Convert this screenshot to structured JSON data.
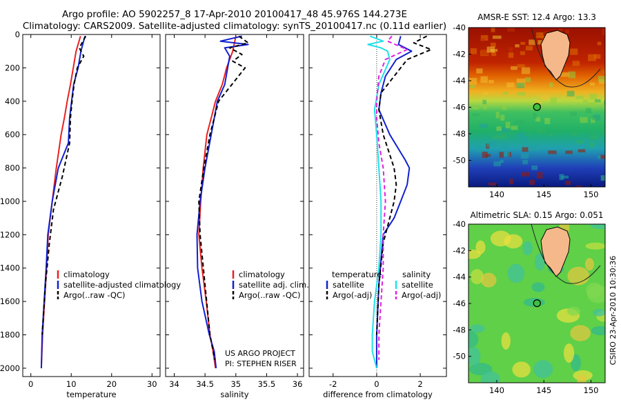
{
  "header": {
    "line1": "Argo profile: AO 5902257_8 17-Apr-2010 20100417_48 45.976S 144.273E",
    "line2": "Climatology: CARS2009. Satellite-adjusted climatology: synTS_20100417.nc (0.11d earlier)"
  },
  "side_label": "CSIRO 23-Apr-2010 10:30:36",
  "colors": {
    "red": "#e82020",
    "blue": "#1020d0",
    "black": "#000000",
    "cyan": "#20e0e8",
    "magenta": "#e020e0",
    "land": "#f5b88a"
  },
  "chart_data": [
    {
      "type": "line",
      "xlabel": "temperature",
      "xticks": [
        0,
        10,
        20,
        30
      ],
      "xlim": [
        -2,
        32
      ],
      "ylim": [
        2050,
        0
      ],
      "yticks": [
        0,
        200,
        400,
        600,
        800,
        1000,
        1200,
        1400,
        1600,
        1800,
        2000
      ],
      "legend": [
        "climatology",
        "satellite-adjusted climatology",
        "Argo(..raw -QC)"
      ],
      "series": [
        {
          "name": "climatology",
          "color": "red",
          "dash": false,
          "x": [
            12.3,
            11.2,
            10.5,
            9.8,
            9.0,
            8.3,
            7.5,
            6.3,
            5.3,
            4.3,
            3.9,
            3.4,
            2.9,
            2.6
          ],
          "y": [
            10,
            100,
            200,
            300,
            400,
            500,
            600,
            800,
            1000,
            1200,
            1400,
            1600,
            1800,
            2000
          ]
        },
        {
          "name": "satellite-adjusted climatology",
          "color": "blue",
          "dash": false,
          "x": [
            13.4,
            12.4,
            11.7,
            10.6,
            10.1,
            9.6,
            9.3,
            6.8,
            5.3,
            4.2,
            3.8,
            3.3,
            2.8,
            2.6
          ],
          "y": [
            10,
            100,
            200,
            300,
            400,
            500,
            650,
            800,
            1000,
            1200,
            1400,
            1600,
            1800,
            2000
          ]
        },
        {
          "name": "Argo(..raw -QC)",
          "color": "black",
          "dash": true,
          "x": [
            13.6,
            12.0,
            13.1,
            11.5,
            10.7,
            10.2,
            9.8,
            9.6,
            7.8,
            5.6,
            4.6,
            3.6,
            2.8
          ],
          "y": [
            10,
            80,
            130,
            200,
            300,
            400,
            500,
            650,
            850,
            1050,
            1250,
            1500,
            1800
          ]
        }
      ]
    },
    {
      "type": "line",
      "xlabel": "salinity",
      "xticks": [
        34,
        34.5,
        35,
        35.5,
        36
      ],
      "xlim": [
        33.86,
        36.1
      ],
      "ylim": [
        2050,
        0
      ],
      "legend": [
        "climatology",
        "satellite adj. clim.",
        "Argo(..raw -QC)"
      ],
      "annotation": [
        "US ARGO PROJECT",
        "PI: STEPHEN RISER"
      ],
      "series": [
        {
          "name": "climatology",
          "color": "red",
          "dash": false,
          "x": [
            35.0,
            34.95,
            34.85,
            34.78,
            34.67,
            34.6,
            34.53,
            34.47,
            34.43,
            34.4,
            34.45,
            34.52,
            34.58,
            34.63,
            34.67
          ],
          "y": [
            10,
            100,
            200,
            300,
            400,
            500,
            600,
            800,
            1000,
            1200,
            1400,
            1600,
            1800,
            1900,
            2000
          ]
        },
        {
          "name": "satellite adj. clim.",
          "color": "blue",
          "dash": false,
          "x": [
            35.1,
            34.75,
            35.2,
            34.82,
            34.9,
            34.82,
            34.7,
            34.6,
            34.5,
            34.42,
            34.37,
            34.38,
            34.45,
            34.57,
            34.65,
            34.68
          ],
          "y": [
            10,
            40,
            60,
            80,
            130,
            300,
            400,
            600,
            800,
            1000,
            1200,
            1400,
            1600,
            1800,
            1900,
            2000
          ]
        },
        {
          "name": "Argo(..raw -QC)",
          "color": "black",
          "dash": true,
          "x": [
            35.05,
            35.2,
            34.9,
            35.1,
            34.95,
            35.15,
            34.72,
            34.58,
            34.48,
            34.4,
            34.42,
            34.5,
            34.58,
            34.66
          ],
          "y": [
            10,
            50,
            80,
            120,
            160,
            200,
            400,
            600,
            800,
            1000,
            1200,
            1500,
            1800,
            1950
          ]
        }
      ]
    },
    {
      "type": "line",
      "xlabel": "difference from climatology",
      "xticks": [
        -2,
        0,
        2
      ],
      "xlim": [
        -3.1,
        3.2
      ],
      "ylim": [
        2050,
        0
      ],
      "legend_title_left": "temperature",
      "legend_title_right": "salinity",
      "legend_left": [
        "satellite",
        "Argo(-adj)"
      ],
      "legend_right": [
        "satellite",
        "Argo(-adj)"
      ],
      "series": [
        {
          "name": "temperature satellite",
          "color": "blue",
          "dash": false,
          "x": [
            1.1,
            1.0,
            1.6,
            0.9,
            0.4,
            0.2,
            0.1,
            0.6,
            1.3,
            1.5,
            1.4,
            1.1,
            0.8,
            0.3,
            0.1,
            0.0,
            0.0
          ],
          "y": [
            10,
            60,
            100,
            150,
            250,
            350,
            450,
            600,
            750,
            800,
            900,
            1000,
            1100,
            1200,
            1500,
            1800,
            2000
          ]
        },
        {
          "name": "temperature Argo(-adj)",
          "color": "black",
          "dash": true,
          "x": [
            2.3,
            1.7,
            2.5,
            1.4,
            0.8,
            0.2,
            0.1,
            0.3,
            0.8,
            0.9,
            0.8,
            0.6,
            0.3,
            0.1,
            0.0
          ],
          "y": [
            10,
            50,
            90,
            150,
            250,
            350,
            450,
            600,
            800,
            900,
            1000,
            1100,
            1250,
            1500,
            1800
          ]
        },
        {
          "name": "salinity satellite",
          "color": "cyan",
          "dash": false,
          "x": [
            -0.3,
            0.3,
            -0.4,
            0.2,
            0.5,
            0.6,
            0.1,
            -0.1,
            0.0,
            0.1,
            0.2,
            0.2,
            0.1,
            -0.1,
            -0.2,
            -0.2,
            0.0
          ],
          "y": [
            10,
            40,
            60,
            80,
            100,
            150,
            300,
            450,
            600,
            800,
            1000,
            1200,
            1400,
            1600,
            1800,
            1900,
            2000
          ]
        },
        {
          "name": "salinity Argo(-adj)",
          "color": "magenta",
          "dash": true,
          "x": [
            0.7,
            0.5,
            1.4,
            0.4,
            0.1,
            0.0,
            0.0,
            0.1,
            0.3,
            0.4,
            0.3,
            0.3,
            0.2,
            0.1,
            0.1
          ],
          "y": [
            10,
            40,
            90,
            150,
            250,
            400,
            500,
            650,
            800,
            1000,
            1200,
            1400,
            1600,
            1800,
            1950
          ]
        }
      ]
    }
  ],
  "maps": {
    "sst": {
      "title": "AMSR-E SST: 12.4 Argo: 13.3",
      "xticks": [
        140,
        145,
        150
      ],
      "yticks": [
        -40,
        -42,
        -44,
        -46,
        -48,
        -50
      ],
      "xlim": [
        137,
        151.5
      ],
      "ylim": [
        -52,
        -40
      ],
      "argo_lon": 144.27,
      "argo_lat": -45.98
    },
    "sla": {
      "title": "Altimetric SLA: 0.15 Argo: 0.051",
      "xticks": [
        140,
        145,
        150
      ],
      "yticks": [
        -40,
        -42,
        -44,
        -46,
        -48,
        -50
      ],
      "xlim": [
        137,
        151.5
      ],
      "ylim": [
        -52,
        -40
      ],
      "argo_lon": 144.27,
      "argo_lat": -45.98
    }
  }
}
